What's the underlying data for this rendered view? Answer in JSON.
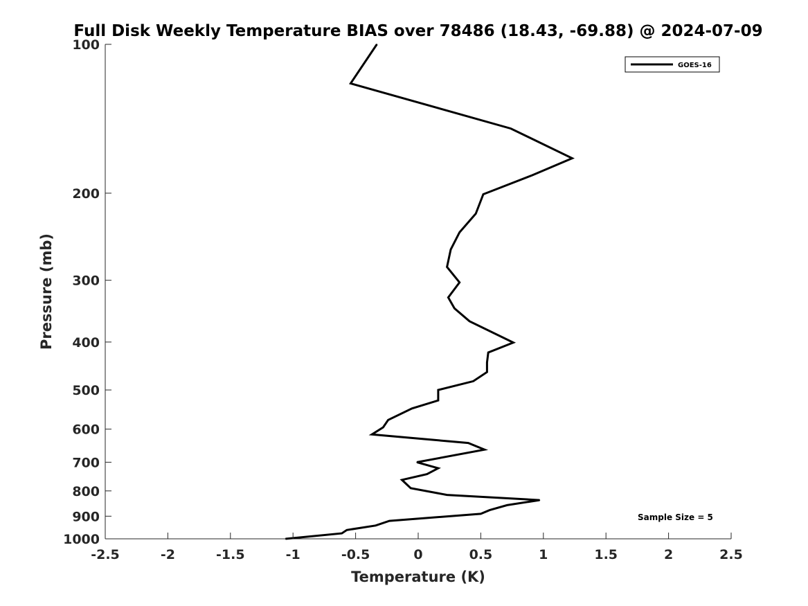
{
  "chart_data": {
    "type": "line",
    "title": "Full Disk Weekly Temperature BIAS over 78486 (18.43, -69.88) @ 2024-07-09",
    "xlabel": "Temperature (K)",
    "ylabel": "Pressure (mb)",
    "xlim": [
      -2.5,
      2.5
    ],
    "ylim": [
      1000,
      100
    ],
    "yscale": "log",
    "y_reversed": true,
    "grid": false,
    "legend_position": "top-right",
    "x_ticks": [
      -2.5,
      -2,
      -1.5,
      -1,
      -0.5,
      0,
      0.5,
      1,
      1.5,
      2,
      2.5
    ],
    "x_tick_labels": [
      "-2.5",
      "-2",
      "-1.5",
      "-1",
      "-0.5",
      "0",
      "0.5",
      "1",
      "1.5",
      "2",
      "2.5"
    ],
    "y_ticks": [
      100,
      200,
      300,
      400,
      500,
      600,
      700,
      800,
      900,
      1000
    ],
    "y_tick_labels": [
      "100",
      "200",
      "300",
      "400",
      "500",
      "600",
      "700",
      "800",
      "900",
      "1000"
    ],
    "annotation": "Sample Size = 5",
    "series": [
      {
        "name": "GOES-16",
        "color": "#000000",
        "points": [
          {
            "x": -0.33,
            "y": 100
          },
          {
            "x": -0.54,
            "y": 120
          },
          {
            "x": 0.74,
            "y": 148
          },
          {
            "x": 1.23,
            "y": 170
          },
          {
            "x": 0.91,
            "y": 184
          },
          {
            "x": 0.52,
            "y": 201
          },
          {
            "x": 0.46,
            "y": 220
          },
          {
            "x": 0.33,
            "y": 240
          },
          {
            "x": 0.26,
            "y": 260
          },
          {
            "x": 0.23,
            "y": 282
          },
          {
            "x": 0.33,
            "y": 303
          },
          {
            "x": 0.24,
            "y": 325
          },
          {
            "x": 0.29,
            "y": 342
          },
          {
            "x": 0.41,
            "y": 363
          },
          {
            "x": 0.76,
            "y": 401
          },
          {
            "x": 0.56,
            "y": 420
          },
          {
            "x": 0.55,
            "y": 440
          },
          {
            "x": 0.55,
            "y": 460
          },
          {
            "x": 0.44,
            "y": 480
          },
          {
            "x": 0.16,
            "y": 500
          },
          {
            "x": 0.16,
            "y": 525
          },
          {
            "x": -0.05,
            "y": 545
          },
          {
            "x": -0.24,
            "y": 575
          },
          {
            "x": -0.28,
            "y": 595
          },
          {
            "x": -0.37,
            "y": 615
          },
          {
            "x": 0.4,
            "y": 640
          },
          {
            "x": 0.53,
            "y": 660
          },
          {
            "x": -0.01,
            "y": 700
          },
          {
            "x": 0.16,
            "y": 720
          },
          {
            "x": 0.07,
            "y": 740
          },
          {
            "x": -0.13,
            "y": 760
          },
          {
            "x": -0.06,
            "y": 790
          },
          {
            "x": 0.23,
            "y": 815
          },
          {
            "x": 0.97,
            "y": 835
          },
          {
            "x": 0.71,
            "y": 855
          },
          {
            "x": 0.57,
            "y": 875
          },
          {
            "x": 0.5,
            "y": 890
          },
          {
            "x": -0.23,
            "y": 920
          },
          {
            "x": -0.34,
            "y": 940
          },
          {
            "x": -0.57,
            "y": 960
          },
          {
            "x": -0.61,
            "y": 975
          },
          {
            "x": -1.06,
            "y": 1000
          }
        ]
      }
    ]
  }
}
